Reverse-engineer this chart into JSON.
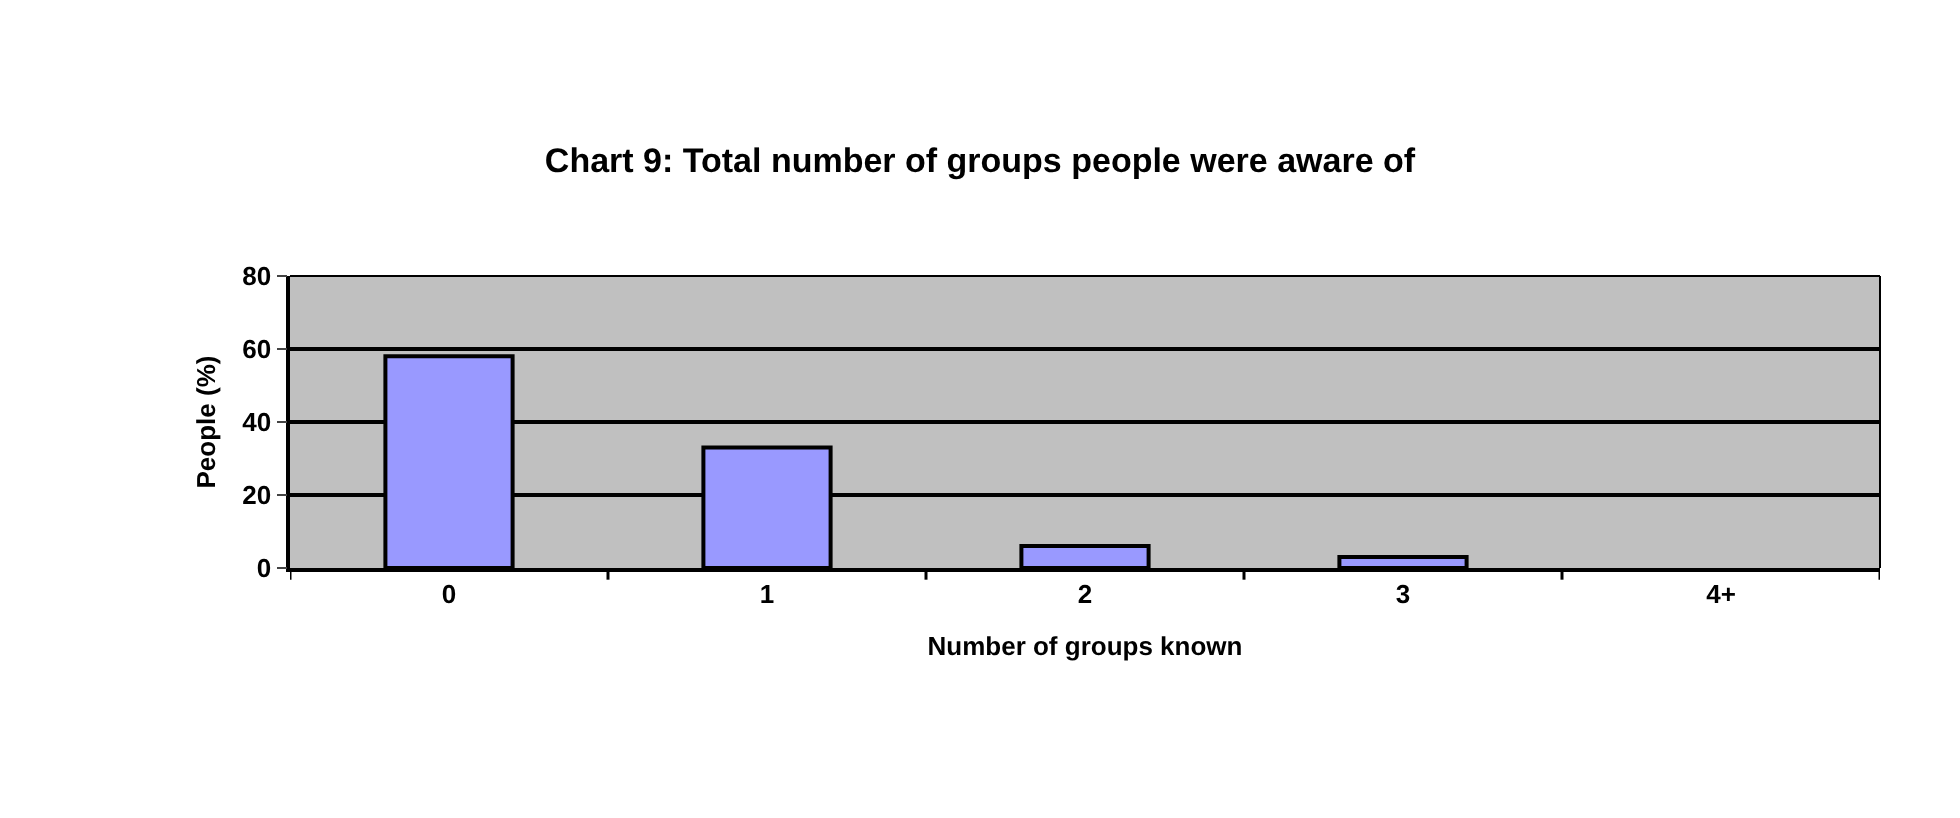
{
  "chart_data": {
    "type": "bar",
    "title": "Chart 9: Total number of groups people were aware of",
    "xlabel": "Number of groups known",
    "ylabel": "People (%)",
    "categories": [
      "0",
      "1",
      "2",
      "3",
      "4+"
    ],
    "values": [
      58,
      33,
      6,
      3,
      null
    ],
    "color": "#9999ff",
    "ylim": [
      0,
      80
    ],
    "yticks": [
      0,
      20,
      40,
      60,
      80
    ],
    "grid": "y",
    "legend": false
  }
}
